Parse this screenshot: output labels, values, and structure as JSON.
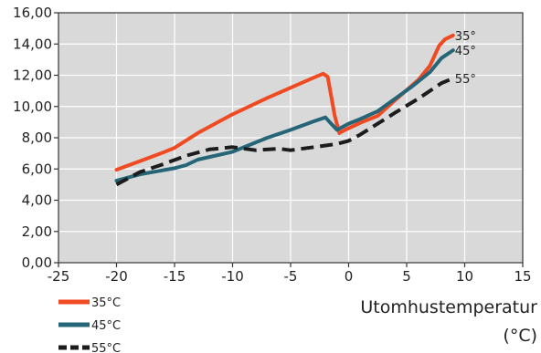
{
  "chart_data": {
    "type": "line",
    "xlabel": "Utomhustemperatur",
    "xunit": "(°C)",
    "ylabel": "",
    "xlim": [
      -25,
      15
    ],
    "ylim": [
      0,
      16
    ],
    "grid": true,
    "legend_position": "bottom-left",
    "x_ticks": [
      -25,
      -20,
      -15,
      -10,
      -5,
      0,
      5,
      10,
      15
    ],
    "x_tick_labels": [
      "-25",
      "-20",
      "-15",
      "-10",
      "-5",
      "0",
      "5",
      "10",
      "15"
    ],
    "y_ticks": [
      0,
      2,
      4,
      6,
      8,
      10,
      12,
      14,
      16
    ],
    "y_tick_labels": [
      "0,00",
      "2,00",
      "4,00",
      "6,00",
      "8,00",
      "10,00",
      "12,00",
      "14,00",
      "16,00"
    ],
    "series": [
      {
        "name": "35°C",
        "end_label": "35°",
        "color": "#f04a23",
        "dash": "solid",
        "points": [
          [
            -20,
            5.95
          ],
          [
            -18,
            6.5
          ],
          [
            -16,
            7.05
          ],
          [
            -15,
            7.35
          ],
          [
            -13,
            8.3
          ],
          [
            -10,
            9.5
          ],
          [
            -7,
            10.55
          ],
          [
            -5,
            11.2
          ],
          [
            -3,
            11.85
          ],
          [
            -2.2,
            12.1
          ],
          [
            -1.8,
            11.9
          ],
          [
            -1.2,
            9.4
          ],
          [
            -0.8,
            8.3
          ],
          [
            -0.3,
            8.5
          ],
          [
            1,
            8.95
          ],
          [
            2.5,
            9.4
          ],
          [
            4,
            10.4
          ],
          [
            5,
            11.05
          ],
          [
            6,
            11.7
          ],
          [
            7,
            12.6
          ],
          [
            7.8,
            13.9
          ],
          [
            8.3,
            14.3
          ],
          [
            9,
            14.55
          ]
        ]
      },
      {
        "name": "45°C",
        "end_label": "45°",
        "color": "#256577",
        "dash": "solid",
        "points": [
          [
            -20,
            5.25
          ],
          [
            -18,
            5.65
          ],
          [
            -15,
            6.05
          ],
          [
            -14,
            6.25
          ],
          [
            -13,
            6.6
          ],
          [
            -10,
            7.1
          ],
          [
            -8,
            7.7
          ],
          [
            -7,
            8.0
          ],
          [
            -5,
            8.5
          ],
          [
            -3,
            9.05
          ],
          [
            -2,
            9.3
          ],
          [
            -1.5,
            8.9
          ],
          [
            -1,
            8.5
          ],
          [
            -0.5,
            8.7
          ],
          [
            0,
            8.9
          ],
          [
            1,
            9.2
          ],
          [
            2.5,
            9.7
          ],
          [
            4,
            10.5
          ],
          [
            5.5,
            11.3
          ],
          [
            7,
            12.2
          ],
          [
            8,
            13.1
          ],
          [
            9,
            13.6
          ]
        ]
      },
      {
        "name": "55°C",
        "end_label": "55°",
        "color": "#1c1c1c",
        "dash": "dashed",
        "points": [
          [
            -20,
            5.0
          ],
          [
            -18,
            5.8
          ],
          [
            -16,
            6.3
          ],
          [
            -14,
            6.85
          ],
          [
            -12,
            7.25
          ],
          [
            -10,
            7.4
          ],
          [
            -8,
            7.2
          ],
          [
            -6,
            7.3
          ],
          [
            -5,
            7.2
          ],
          [
            -3,
            7.4
          ],
          [
            -1,
            7.6
          ],
          [
            0,
            7.8
          ],
          [
            1,
            8.2
          ],
          [
            2.5,
            8.9
          ],
          [
            4,
            9.6
          ],
          [
            6,
            10.5
          ],
          [
            8,
            11.5
          ],
          [
            9,
            11.8
          ]
        ]
      }
    ]
  }
}
